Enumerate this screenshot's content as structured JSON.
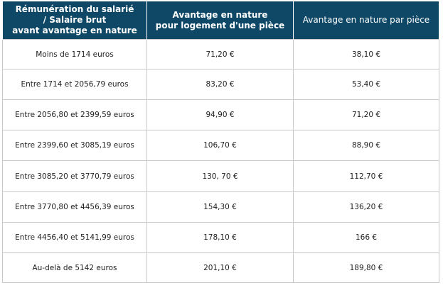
{
  "table": {
    "headers": {
      "col1_line1": "Rémunération du salarié",
      "col1_line2": "/ Salaire brut",
      "col1_line3": "avant avantage en nature",
      "col2_line1": "Avantage en nature",
      "col2_line2": "pour logement d'une pièce",
      "col3": "Avantage en nature par pièce"
    },
    "rows": [
      {
        "salary": "Moins de 1714 euros",
        "one_room": "71,20 €",
        "per_room": "38,10 €"
      },
      {
        "salary": "Entre 1714 et 2056,79 euros",
        "one_room": "83,20 €",
        "per_room": "53,40 €"
      },
      {
        "salary": "Entre 2056,80 et 2399,59 euros",
        "one_room": "94,90 €",
        "per_room": "71,20 €"
      },
      {
        "salary": "Entre 2399,60 et 3085,19 euros",
        "one_room": "106,70 €",
        "per_room": "88,90 €"
      },
      {
        "salary": "Entre 3085,20 et 3770,79 euros",
        "one_room": "130, 70 €",
        "per_room": "112,70 €"
      },
      {
        "salary": "Entre 3770,80 et 4456,39 euros",
        "one_room": "154,30 €",
        "per_room": "136,20 €"
      },
      {
        "salary": "Entre 4456,40 et 5141,99 euros",
        "one_room": "178,10 €",
        "per_room": "166 €"
      },
      {
        "salary": "Au-delà de 5142 euros",
        "one_room": "201,10 €",
        "per_room": "189,80 €"
      }
    ],
    "colors": {
      "header_bg": "#0e4866",
      "header_text": "#ffffff",
      "border": "#c9c9c9"
    }
  }
}
